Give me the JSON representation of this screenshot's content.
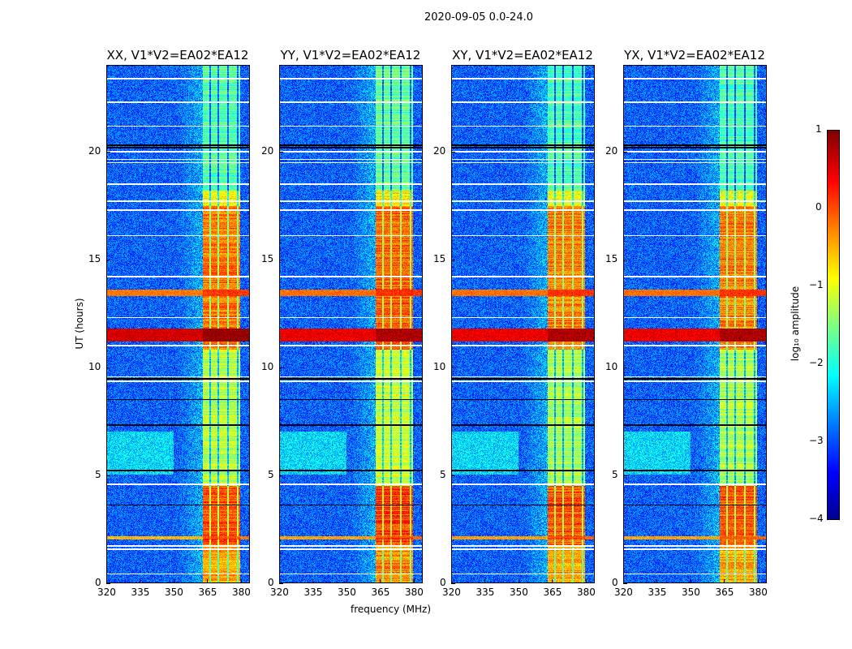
{
  "chart_data": {
    "type": "heatmap",
    "suptitle": "2020-09-05 0.0-24.0",
    "xlabel": "frequency (MHz)",
    "ylabel": "UT (hours)",
    "xlim": [
      320,
      384
    ],
    "ylim": [
      0,
      24
    ],
    "xticks": [
      "320",
      "335",
      "350",
      "365",
      "380"
    ],
    "xtick_values": [
      320,
      335,
      350,
      365,
      380
    ],
    "yticks": [
      "0",
      "5",
      "10",
      "15",
      "20"
    ],
    "ytick_values": [
      0,
      5,
      10,
      15,
      20
    ],
    "panels": [
      {
        "title": "XX, V1*V2=EA02*EA12",
        "rfi_strength": 1.0
      },
      {
        "title": "YY, V1*V2=EA02*EA12",
        "rfi_strength": 1.1
      },
      {
        "title": "XY, V1*V2=EA02*EA12",
        "rfi_strength": 0.95
      },
      {
        "title": "YX, V1*V2=EA02*EA12",
        "rfi_strength": 0.95
      }
    ],
    "colorbar": {
      "label": "log₁₀ amplitude",
      "colormap": "jet",
      "range": [
        -4,
        1
      ],
      "ticks": [
        "1",
        "0",
        "−1",
        "−2",
        "−3",
        "−4"
      ],
      "tick_values": [
        1,
        0,
        -1,
        -2,
        -3,
        -4
      ]
    },
    "background_level": -2.9,
    "rfi_band_mhz": [
      363,
      380
    ],
    "rfi_gaps_mhz": [
      366.3,
      370.2,
      374.6,
      379.0
    ],
    "rfi_levels_by_time": [
      {
        "from": 0,
        "to": 1.7,
        "level": -0.4
      },
      {
        "from": 1.7,
        "to": 4.5,
        "level": 0.0
      },
      {
        "from": 4.5,
        "to": 10.8,
        "level": -1.2
      },
      {
        "from": 10.8,
        "to": 17.5,
        "level": -0.2
      },
      {
        "from": 17.5,
        "to": 18.2,
        "level": -0.9
      },
      {
        "from": 18.2,
        "to": 24,
        "level": -1.7
      }
    ],
    "broadband_rfi_hours": [
      {
        "from": 11.2,
        "to": 11.8,
        "level": 0.6
      },
      {
        "from": 13.3,
        "to": 13.6,
        "level": -0.2
      },
      {
        "from": 2.0,
        "to": 2.15,
        "level": -0.5
      }
    ],
    "flagged_hours": [
      0.4,
      1.55,
      1.7,
      4.55,
      9.35,
      9.55,
      11.0,
      12.3,
      14.2,
      16.1,
      17.3,
      17.7,
      18.5,
      19.5,
      19.65,
      20.0,
      21.2,
      22.3,
      23.4
    ],
    "dropout_hours": [
      3.6,
      5.2,
      7.3,
      8.5,
      9.45,
      20.2,
      20.3
    ]
  }
}
